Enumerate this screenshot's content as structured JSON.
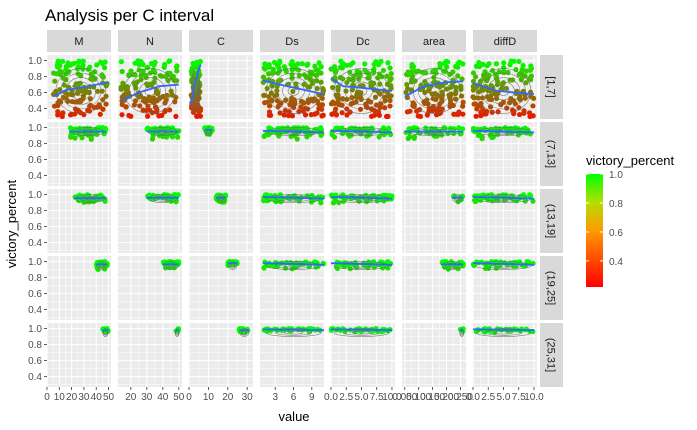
{
  "chart_data": {
    "type": "scatter",
    "title": "Analysis per C interval",
    "xlabel": "value",
    "ylabel": "victory_percent",
    "column_facets": [
      "M",
      "N",
      "C",
      "Ds",
      "Dc",
      "area",
      "diffD"
    ],
    "row_facets": [
      "[1,7]",
      "(7,13]",
      "(13,19]",
      "(19,25]",
      "(25,31]"
    ],
    "y_ticks": [
      "0.4",
      "0.6",
      "0.8",
      "1.0"
    ],
    "y_tick_values": [
      0.4,
      0.6,
      0.8,
      1.0
    ],
    "ylim": [
      0.27,
      1.07
    ],
    "x_ticks": [
      [
        "0",
        "10",
        "20",
        "30",
        "40",
        "50"
      ],
      [
        "20",
        "30",
        "40",
        "50"
      ],
      [
        "0",
        "10",
        "20",
        "30"
      ],
      [
        "3",
        "6",
        "9"
      ],
      [
        "0.0",
        "2.5",
        "5.0",
        "7.5",
        "10.0"
      ],
      [
        "0.050",
        "0.100",
        "0.150",
        "0.200",
        "0.250"
      ],
      [
        "0.0",
        "2.5",
        "5.0",
        "7.5",
        "10.0"
      ]
    ],
    "x_tick_values": [
      [
        0,
        10,
        20,
        30,
        40,
        50
      ],
      [
        20,
        30,
        40,
        50
      ],
      [
        0,
        10,
        20,
        30
      ],
      [
        3,
        6,
        9
      ],
      [
        0,
        2.5,
        5,
        7.5,
        10
      ],
      [
        0.05,
        0.1,
        0.15,
        0.2,
        0.25
      ],
      [
        0,
        2.5,
        5,
        7.5,
        10
      ]
    ],
    "x_ranges": [
      [
        0,
        52
      ],
      [
        12,
        52
      ],
      [
        0,
        33
      ],
      [
        0.5,
        11
      ],
      [
        0,
        10.5
      ],
      [
        0.04,
        0.27
      ],
      [
        0,
        10.5
      ]
    ],
    "point_clusters": [
      [
        {
          "x": [
            5,
            50
          ],
          "y": [
            0.3,
            1.0
          ],
          "n": 130
        },
        {
          "x": [
            18,
            48
          ],
          "y": [
            0.85,
            1.0
          ],
          "n": 55
        },
        {
          "x": [
            22,
            48
          ],
          "y": [
            0.88,
            1.0
          ],
          "n": 45
        },
        {
          "x": [
            40,
            49
          ],
          "y": [
            0.9,
            1.0
          ],
          "n": 30
        },
        {
          "x": [
            45,
            50
          ],
          "y": [
            0.95,
            1.0
          ],
          "n": 20
        }
      ],
      [
        {
          "x": [
            14,
            50
          ],
          "y": [
            0.3,
            1.0
          ],
          "n": 130
        },
        {
          "x": [
            30,
            50
          ],
          "y": [
            0.85,
            1.0
          ],
          "n": 45
        },
        {
          "x": [
            30,
            50
          ],
          "y": [
            0.88,
            1.0
          ],
          "n": 40
        },
        {
          "x": [
            40,
            50
          ],
          "y": [
            0.9,
            1.0
          ],
          "n": 30
        },
        {
          "x": [
            48,
            50
          ],
          "y": [
            0.95,
            1.0
          ],
          "n": 10
        }
      ],
      [
        {
          "x": [
            1,
            6
          ],
          "y": [
            0.3,
            1.0
          ],
          "n": 90
        },
        {
          "x": [
            8,
            12
          ],
          "y": [
            0.9,
            1.0
          ],
          "n": 35
        },
        {
          "x": [
            14,
            19
          ],
          "y": [
            0.88,
            1.0
          ],
          "n": 35
        },
        {
          "x": [
            20,
            25
          ],
          "y": [
            0.95,
            1.0
          ],
          "n": 30
        },
        {
          "x": [
            26,
            31
          ],
          "y": [
            0.95,
            1.0
          ],
          "n": 25
        }
      ],
      [
        {
          "x": [
            1,
            11
          ],
          "y": [
            0.3,
            1.0
          ],
          "n": 140
        },
        {
          "x": [
            1,
            11
          ],
          "y": [
            0.85,
            1.0
          ],
          "n": 55
        },
        {
          "x": [
            1,
            11
          ],
          "y": [
            0.88,
            1.0
          ],
          "n": 55
        },
        {
          "x": [
            1,
            11
          ],
          "y": [
            0.9,
            1.0
          ],
          "n": 45
        },
        {
          "x": [
            1,
            11
          ],
          "y": [
            0.95,
            1.0
          ],
          "n": 40
        }
      ],
      [
        {
          "x": [
            0,
            10
          ],
          "y": [
            0.3,
            1.0
          ],
          "n": 140
        },
        {
          "x": [
            0,
            10
          ],
          "y": [
            0.85,
            1.0
          ],
          "n": 55
        },
        {
          "x": [
            0,
            10
          ],
          "y": [
            0.88,
            1.0
          ],
          "n": 55
        },
        {
          "x": [
            0,
            10
          ],
          "y": [
            0.9,
            1.0
          ],
          "n": 45
        },
        {
          "x": [
            0,
            10
          ],
          "y": [
            0.95,
            1.0
          ],
          "n": 40
        }
      ],
      [
        {
          "x": [
            0.05,
            0.26
          ],
          "y": [
            0.3,
            1.0
          ],
          "n": 130
        },
        {
          "x": [
            0.05,
            0.26
          ],
          "y": [
            0.85,
            1.0
          ],
          "n": 45
        },
        {
          "x": [
            0.22,
            0.26
          ],
          "y": [
            0.88,
            1.0
          ],
          "n": 10
        },
        {
          "x": [
            0.18,
            0.26
          ],
          "y": [
            0.9,
            1.0
          ],
          "n": 30
        },
        {
          "x": [
            0.25,
            0.26
          ],
          "y": [
            0.95,
            1.0
          ],
          "n": 5
        }
      ],
      [
        {
          "x": [
            0,
            10
          ],
          "y": [
            0.3,
            1.0
          ],
          "n": 140
        },
        {
          "x": [
            0,
            10
          ],
          "y": [
            0.85,
            1.0
          ],
          "n": 55
        },
        {
          "x": [
            0,
            10
          ],
          "y": [
            0.88,
            1.0
          ],
          "n": 55
        },
        {
          "x": [
            0,
            10
          ],
          "y": [
            0.9,
            1.0
          ],
          "n": 45
        },
        {
          "x": [
            0,
            10
          ],
          "y": [
            0.95,
            1.0
          ],
          "n": 40
        }
      ]
    ],
    "smooth_lines": [
      [
        [
          [
            5,
            0.55
          ],
          [
            15,
            0.63
          ],
          [
            30,
            0.67
          ],
          [
            50,
            0.73
          ]
        ],
        [
          [
            18,
            0.95
          ],
          [
            48,
            0.95
          ]
        ],
        [
          [
            22,
            0.955
          ],
          [
            48,
            0.955
          ]
        ],
        [
          [
            40,
            0.965
          ],
          [
            49,
            0.965
          ]
        ],
        [
          [
            45,
            0.98
          ],
          [
            50,
            0.98
          ]
        ]
      ],
      [
        [
          [
            14,
            0.5
          ],
          [
            25,
            0.6
          ],
          [
            38,
            0.68
          ],
          [
            50,
            0.7
          ]
        ],
        [
          [
            30,
            0.95
          ],
          [
            50,
            0.95
          ]
        ],
        [
          [
            30,
            0.96
          ],
          [
            50,
            0.96
          ]
        ],
        [
          [
            40,
            0.965
          ],
          [
            50,
            0.965
          ]
        ],
        [
          [
            48,
            0.98
          ],
          [
            50,
            0.98
          ]
        ]
      ],
      [
        [
          [
            1,
            0.45
          ],
          [
            3,
            0.7
          ],
          [
            5,
            0.88
          ],
          [
            6,
            0.95
          ]
        ],
        [
          [
            8,
            0.97
          ],
          [
            12,
            0.97
          ]
        ],
        [
          [
            14,
            0.96
          ],
          [
            19,
            0.96
          ]
        ],
        [
          [
            20,
            0.98
          ],
          [
            25,
            0.98
          ]
        ],
        [
          [
            26,
            0.98
          ],
          [
            31,
            0.98
          ]
        ]
      ],
      [
        [
          [
            1,
            0.75
          ],
          [
            5,
            0.68
          ],
          [
            11,
            0.58
          ]
        ],
        [
          [
            1,
            0.96
          ],
          [
            11,
            0.94
          ]
        ],
        [
          [
            1,
            0.97
          ],
          [
            11,
            0.95
          ]
        ],
        [
          [
            1,
            0.98
          ],
          [
            11,
            0.96
          ]
        ],
        [
          [
            1,
            0.99
          ],
          [
            11,
            0.98
          ]
        ]
      ],
      [
        [
          [
            0,
            0.78
          ],
          [
            2,
            0.68
          ],
          [
            5,
            0.66
          ],
          [
            10,
            0.62
          ]
        ],
        [
          [
            0,
            0.96
          ],
          [
            10,
            0.94
          ]
        ],
        [
          [
            0,
            0.97
          ],
          [
            10,
            0.95
          ]
        ],
        [
          [
            0,
            0.98
          ],
          [
            10,
            0.96
          ]
        ],
        [
          [
            0,
            0.99
          ],
          [
            10,
            0.98
          ]
        ]
      ],
      [
        [
          [
            0.05,
            0.55
          ],
          [
            0.12,
            0.68
          ],
          [
            0.2,
            0.73
          ],
          [
            0.26,
            0.74
          ]
        ],
        [
          [
            0.05,
            0.95
          ],
          [
            0.26,
            0.95
          ]
        ],
        [
          [
            0.22,
            0.96
          ],
          [
            0.26,
            0.96
          ]
        ],
        [
          [
            0.18,
            0.965
          ],
          [
            0.26,
            0.965
          ]
        ],
        [
          [
            0.25,
            0.98
          ],
          [
            0.26,
            0.98
          ]
        ]
      ],
      [
        [
          [
            0,
            0.72
          ],
          [
            4,
            0.62
          ],
          [
            10,
            0.58
          ]
        ],
        [
          [
            0,
            0.96
          ],
          [
            10,
            0.94
          ]
        ],
        [
          [
            0,
            0.97
          ],
          [
            10,
            0.95
          ]
        ],
        [
          [
            0,
            0.98
          ],
          [
            10,
            0.96
          ]
        ],
        [
          [
            0,
            0.99
          ],
          [
            10,
            0.98
          ]
        ]
      ]
    ],
    "legend": {
      "title": "victory_percent",
      "ticks": [
        "0.4",
        "0.6",
        "0.8",
        "1.0"
      ],
      "tick_values": [
        0.4,
        0.6,
        0.8,
        1.0
      ],
      "range": [
        0.22,
        1.0
      ],
      "low_color": "#ff0000",
      "high_color": "#00ff00",
      "position": "right"
    },
    "colors": {
      "panel": "#ebebeb",
      "grid": "#ffffff",
      "strip": "#d9d9d9",
      "smooth": "#3366ff",
      "contour": "#666666"
    }
  }
}
